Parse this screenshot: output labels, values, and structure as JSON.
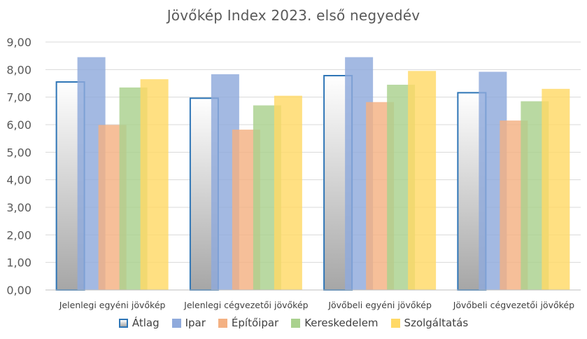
{
  "chart_data": {
    "type": "bar",
    "title": "Jövőkép Index 2023. első negyedév",
    "categories": [
      "Jelenlegi egyéni jövőkép",
      "Jelenlegi cégvezetői jövőkép",
      "Jövőbeli egyéni jövőkép",
      "Jövőbeli cégvezetői jövőkép"
    ],
    "series": [
      {
        "name": "Átlag",
        "values": [
          7.55,
          6.96,
          7.78,
          7.16
        ],
        "color": "#2e75b6"
      },
      {
        "name": "Ipar",
        "values": [
          8.45,
          7.83,
          8.45,
          7.92
        ],
        "color": "#8faadc"
      },
      {
        "name": "Építőipar",
        "values": [
          5.99,
          5.82,
          6.82,
          6.15
        ],
        "color": "#f4b183"
      },
      {
        "name": "Kereskedelem",
        "values": [
          7.35,
          6.7,
          7.45,
          6.85
        ],
        "color": "#a9d18e"
      },
      {
        "name": "Szolgáltatás",
        "values": [
          7.65,
          7.05,
          7.95,
          7.3
        ],
        "color": "#ffd966"
      }
    ],
    "y_ticks": [
      "0,00",
      "1,00",
      "2,00",
      "3,00",
      "4,00",
      "5,00",
      "6,00",
      "7,00",
      "8,00",
      "9,00"
    ],
    "ylim": [
      0,
      9
    ],
    "grid": true,
    "legend_position": "bottom"
  }
}
